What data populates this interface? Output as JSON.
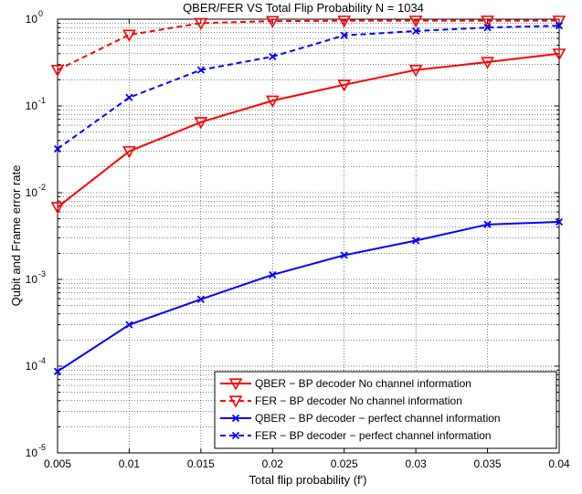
{
  "chart_data": {
    "type": "line",
    "title": "QBER/FER VS Total Flip Probability N = 1034",
    "xlabel": "Total flip probability (f')",
    "ylabel": "Qubit and Frame error rate",
    "yscale": "log",
    "xlim": [
      0.005,
      0.04
    ],
    "ylim": [
      1e-05,
      1
    ],
    "grid": true,
    "legend_position": "bottom-right",
    "x_ticks": [
      "0.005",
      "0.01",
      "0.015",
      "0.02",
      "0.025",
      "0.03",
      "0.035",
      "0.04"
    ],
    "y_ticks": [
      {
        "base": "10",
        "exp": "-5"
      },
      {
        "base": "10",
        "exp": "-4"
      },
      {
        "base": "10",
        "exp": "-3"
      },
      {
        "base": "10",
        "exp": "-2"
      },
      {
        "base": "10",
        "exp": "-1"
      },
      {
        "base": "10",
        "exp": "0"
      }
    ],
    "x": [
      0.005,
      0.01,
      0.015,
      0.02,
      0.025,
      0.03,
      0.035,
      0.04
    ],
    "series": [
      {
        "name": "QBER − BP decoder No channel information",
        "color": "#ff0000",
        "dash": "solid",
        "marker": "triangle-down",
        "values": [
          0.0068,
          0.03,
          0.065,
          0.115,
          0.175,
          0.26,
          0.32,
          0.4
        ]
      },
      {
        "name": "FER − BP decoder No channel information",
        "color": "#ff0000",
        "dash": "dashed",
        "marker": "triangle-down",
        "values": [
          0.26,
          0.66,
          0.9,
          0.95,
          0.96,
          0.96,
          0.96,
          0.96
        ]
      },
      {
        "name": "QBER − BP decoder − perfect channel information",
        "color": "#0000ff",
        "dash": "solid",
        "marker": "x",
        "values": [
          8.7e-05,
          0.0003,
          0.00059,
          0.00113,
          0.0019,
          0.0028,
          0.0043,
          0.0046
        ]
      },
      {
        "name": "FER − BP decoder − perfect channel information",
        "color": "#0000ff",
        "dash": "dashed",
        "marker": "x",
        "values": [
          0.032,
          0.125,
          0.26,
          0.37,
          0.65,
          0.73,
          0.8,
          0.84
        ]
      }
    ]
  }
}
